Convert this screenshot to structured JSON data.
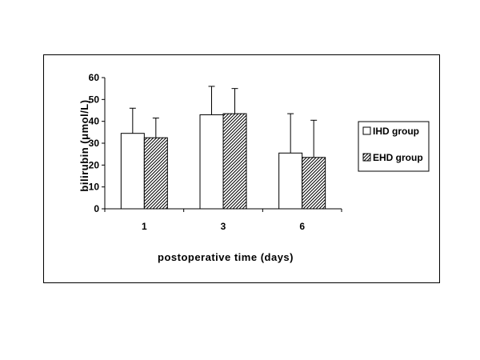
{
  "chart_data": {
    "type": "bar",
    "categories": [
      "1",
      "3",
      "6"
    ],
    "series": [
      {
        "name": "IHD group",
        "values": [
          34.5,
          43,
          25.5
        ],
        "errors": [
          11.5,
          13,
          18
        ],
        "fill": "#ffffff",
        "pattern": "none"
      },
      {
        "name": "EHD group",
        "values": [
          32.5,
          43.5,
          23.5
        ],
        "errors": [
          9,
          11.5,
          17
        ],
        "fill": "#ffffff",
        "pattern": "diagonal-hatch"
      }
    ],
    "yticks": [
      0,
      10,
      20,
      30,
      40,
      50,
      60
    ],
    "ylim": [
      0,
      60
    ],
    "xlabel": "postoperative time (days)",
    "ylabel": "bilirubin (μmol/L)",
    "grid": false,
    "legend_position": "right",
    "error_bars": "upper only"
  }
}
